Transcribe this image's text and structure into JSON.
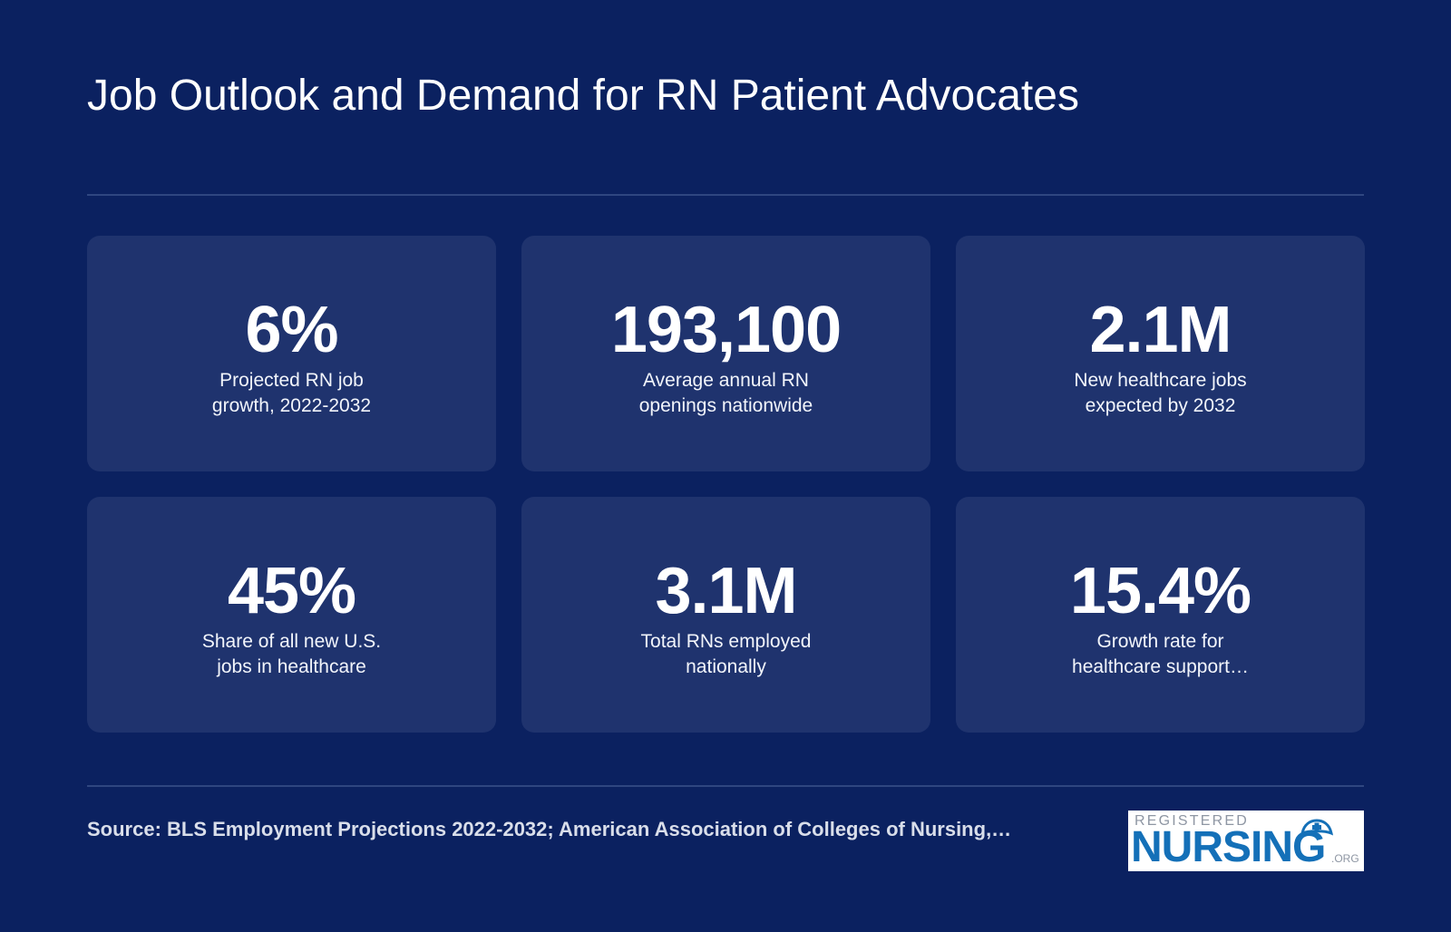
{
  "title": "Job Outlook and Demand for RN Patient Advocates",
  "stats": [
    {
      "value": "6%",
      "label": "Projected RN job growth, 2022-2032"
    },
    {
      "value": "193,100",
      "label": "Average annual RN openings nationwide"
    },
    {
      "value": "2.1M",
      "label": "New healthcare jobs expected by 2032"
    },
    {
      "value": "45%",
      "label": "Share of all new U.S. jobs in healthcare"
    },
    {
      "value": "3.1M",
      "label": "Total RNs employed nationally"
    },
    {
      "value": "15.4%",
      "label": "Growth rate for healthcare support…"
    }
  ],
  "footer": {
    "source": "Source: BLS Employment Projections 2022-2032; American Association of Colleges of Nursing,…"
  },
  "logo": {
    "top_text": "REGISTERED",
    "main_text": "NURSING",
    "suffix": ".ORG"
  },
  "colors": {
    "background": "#0b2160",
    "card": "#1f336e",
    "logo_blue": "#1470b8"
  }
}
